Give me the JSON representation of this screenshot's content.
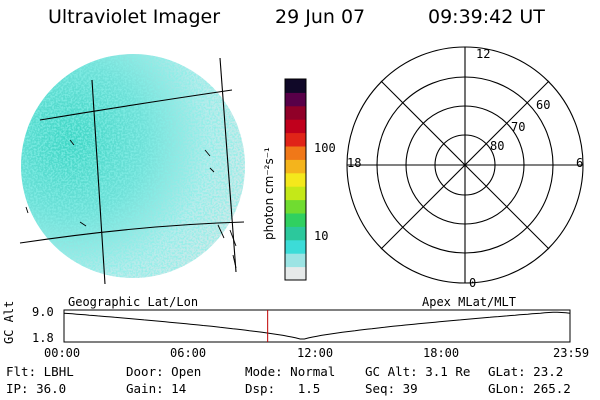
{
  "header": {
    "title": "Ultraviolet Imager",
    "date": "29 Jun 07",
    "time": "09:39:42 UT"
  },
  "colorbar": {
    "unit_label": "photon cm⁻²s⁻¹",
    "ticks": [
      {
        "value": 10,
        "label": "10"
      },
      {
        "value": 100,
        "label": "100"
      }
    ],
    "scale": "log",
    "colors": [
      "#e6eaea",
      "#9ce4e4",
      "#3cdcd8",
      "#2cc89c",
      "#30d060",
      "#70dc30",
      "#c4e818",
      "#f4e81c",
      "#f4b41c",
      "#f07818",
      "#e02418",
      "#c0001c",
      "#900028",
      "#580048",
      "#100828"
    ]
  },
  "polar_grid": {
    "mlt_labels": [
      {
        "label": "12",
        "pos": "top"
      },
      {
        "label": "18",
        "pos": "left"
      },
      {
        "label": "6",
        "pos": "right"
      },
      {
        "label": "0",
        "pos": "bottom"
      }
    ],
    "lat_labels": [
      "60",
      "70",
      "80"
    ]
  },
  "map": {
    "left_label": "Geographic Lat/Lon",
    "right_label": "Apex MLat/MLT"
  },
  "timeline": {
    "ylabel": "GC Alt",
    "y_ticks": [
      "9.0",
      "1.8"
    ],
    "x_ticks": [
      "00:00",
      "06:00",
      "12:00",
      "18:00",
      "23:59"
    ],
    "marker_time_hours": 9.66,
    "marker_color": "#c00000"
  },
  "info": {
    "row1": [
      {
        "label": "Flt:",
        "value": "LBHL"
      },
      {
        "label": "Door:",
        "value": "Open"
      },
      {
        "label": "Mode:",
        "value": "Normal"
      },
      {
        "label": "GC Alt:",
        "value": "3.1 Re"
      },
      {
        "label": "GLat:",
        "value": "23.2"
      }
    ],
    "row2": [
      {
        "label": "IP:",
        "value": "36.0"
      },
      {
        "label": "Gain:",
        "value": "14"
      },
      {
        "label": "Dsp:",
        "value": "1.5"
      },
      {
        "label": "Seq:",
        "value": "39"
      },
      {
        "label": "GLon:",
        "value": "265.2"
      }
    ]
  }
}
